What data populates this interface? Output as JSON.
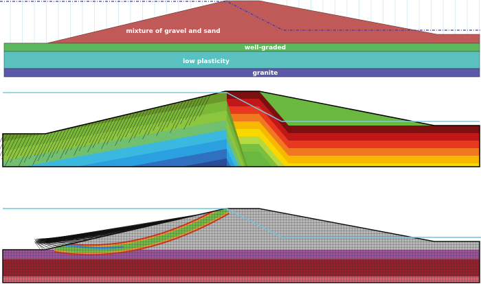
{
  "panel_top": {
    "layers": [
      {
        "label": "mixture of gravel and sand",
        "color": "#c05a58"
      },
      {
        "label": "well-graded",
        "color": "#5cb85c"
      },
      {
        "label": "low plasticity",
        "color": "#5bc0c0"
      },
      {
        "label": "granite",
        "color": "#5a5aa8"
      }
    ],
    "water_line_color": "#3a3ab0"
  },
  "panel_middle": {
    "water_line_color": "#7ec8e3",
    "bands_left": [
      "#6a9a2a",
      "#7ab838",
      "#8cc63f",
      "#70c070",
      "#3ab8e0",
      "#2aa0e0",
      "#3070c0",
      "#2a4a9a"
    ],
    "bands_right": [
      "#7a1010",
      "#c01818",
      "#e83820",
      "#f07820",
      "#f8b800",
      "#f8d800",
      "#b8d840",
      "#7ac040",
      "#6ab840"
    ]
  },
  "panel_bottom": {
    "water_line_color": "#6ec6dc",
    "mesh_colors": {
      "embankment": "#b8b8b8",
      "layer1": "#a050a0",
      "layer2": "#a01c28",
      "layer3": "#e06070"
    }
  }
}
